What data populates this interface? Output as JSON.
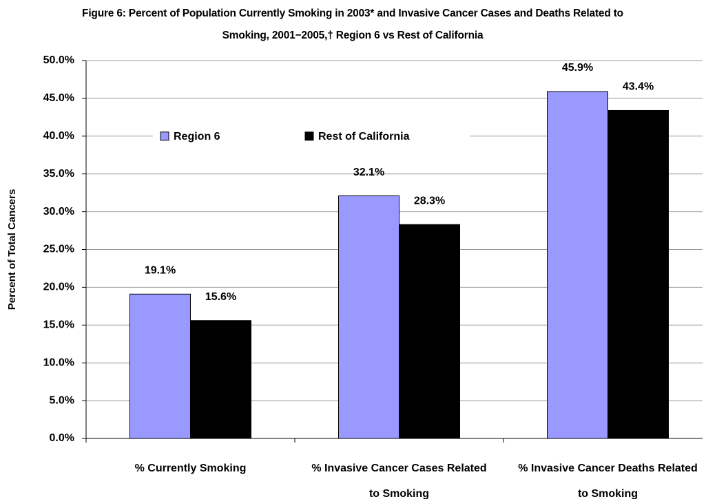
{
  "chart_data": {
    "type": "bar",
    "title": "Figure 6:  Percent of Population Currently Smoking in 2003* and Invasive Cancer Cases and Deaths Related to Smoking, 2001−2005,† Region 6 vs Rest of California",
    "y_label": "Percent of Total Cancers",
    "categories": [
      "% Currently Smoking",
      "% Invasive Cancer Cases Related to Smoking",
      "% Invasive Cancer Deaths Related to Smoking"
    ],
    "series": [
      {
        "name": "Region 6",
        "color": "#9999ff",
        "values": [
          19.1,
          32.1,
          45.9
        ],
        "value_labels": [
          "19.1%",
          "32.1%",
          "45.9%"
        ]
      },
      {
        "name": "Rest of California",
        "color": "#000000",
        "values": [
          15.6,
          28.3,
          43.4
        ],
        "value_labels": [
          "15.6%",
          "28.3%",
          "43.4%"
        ]
      }
    ],
    "ylim": [
      0,
      50
    ],
    "yticks": [
      {
        "value": 0,
        "label": "0.0%"
      },
      {
        "value": 5,
        "label": "5.0%"
      },
      {
        "value": 10,
        "label": "10.0%"
      },
      {
        "value": 15,
        "label": "15.0%"
      },
      {
        "value": 20,
        "label": "20.0%"
      },
      {
        "value": 25,
        "label": "25.0%"
      },
      {
        "value": 30,
        "label": "30.0%"
      },
      {
        "value": 35,
        "label": "35.0%"
      },
      {
        "value": 40,
        "label": "40.0%"
      },
      {
        "value": 45,
        "label": "45.0%"
      },
      {
        "value": 50,
        "label": "50.0%"
      }
    ],
    "grid": true,
    "legend": "upper left"
  }
}
